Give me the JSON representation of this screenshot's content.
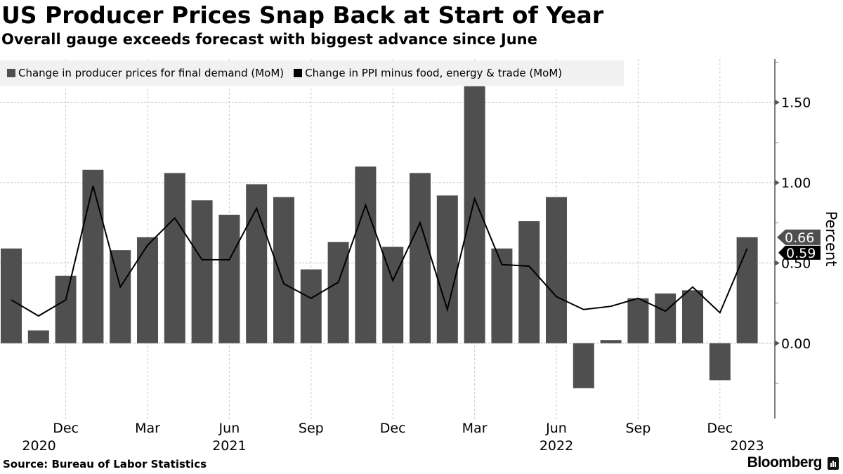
{
  "header": {
    "title": "US Producer Prices Snap Back at Start of Year",
    "subtitle": "Overall gauge exceeds forecast with biggest advance since June"
  },
  "legend": [
    {
      "label": "Change in producer prices for final demand (MoM)",
      "color": "#4f4f4f"
    },
    {
      "label": "Change in PPI minus food, energy & trade (MoM)",
      "color": "#000000"
    }
  ],
  "footer": {
    "source": "Source: Bureau of Labor Statistics",
    "brand": "Bloomberg"
  },
  "chart_data": {
    "type": "bar",
    "title": "US Producer Prices Snap Back at Start of Year",
    "subtitle": "Overall gauge exceeds forecast with biggest advance since June",
    "xlabel": "",
    "ylabel": "Percent",
    "ylim": [
      -0.46,
      1.77
    ],
    "grid": true,
    "legend_position": "top-left",
    "categories": [
      "Oct 2020",
      "Nov 2020",
      "Dec 2020",
      "Jan 2021",
      "Feb 2021",
      "Mar 2021",
      "Apr 2021",
      "May 2021",
      "Jun 2021",
      "Jul 2021",
      "Aug 2021",
      "Sep 2021",
      "Oct 2021",
      "Nov 2021",
      "Dec 2021",
      "Jan 2022",
      "Feb 2022",
      "Mar 2022",
      "Apr 2022",
      "May 2022",
      "Jun 2022",
      "Jul 2022",
      "Aug 2022",
      "Sep 2022",
      "Oct 2022",
      "Nov 2022",
      "Dec 2022",
      "Jan 2023"
    ],
    "series": [
      {
        "name": "Change in producer prices for final demand (MoM)",
        "type": "bar",
        "color": "#4f4f4f",
        "values": [
          0.59,
          0.08,
          0.42,
          1.08,
          0.58,
          0.66,
          1.06,
          0.89,
          0.8,
          0.99,
          0.91,
          0.46,
          0.63,
          1.1,
          0.6,
          1.06,
          0.92,
          1.6,
          0.59,
          0.76,
          0.91,
          -0.28,
          0.02,
          0.28,
          0.31,
          0.33,
          -0.23,
          0.66
        ],
        "last_value_label": "0.66"
      },
      {
        "name": "Change in PPI minus food, energy & trade (MoM)",
        "type": "line",
        "color": "#000000",
        "values": [
          0.27,
          0.17,
          0.27,
          0.98,
          0.35,
          0.61,
          0.78,
          0.52,
          0.52,
          0.84,
          0.37,
          0.28,
          0.38,
          0.86,
          0.39,
          0.75,
          0.21,
          0.9,
          0.49,
          0.48,
          0.29,
          0.21,
          0.23,
          0.28,
          0.2,
          0.35,
          0.19,
          0.59
        ],
        "last_value_label": "0.59"
      }
    ],
    "y_ticks": [
      {
        "value": 1.5,
        "label": "1.50"
      },
      {
        "value": 1.0,
        "label": "1.00"
      },
      {
        "value": 0.5,
        "label": "0.50"
      },
      {
        "value": 0.0,
        "label": "0.00"
      }
    ],
    "y_minor_ticks": [
      1.75,
      1.25,
      0.75,
      0.25,
      -0.25
    ],
    "x_ticks": [
      {
        "index": 2,
        "label": "Dec",
        "year": "2020"
      },
      {
        "index": 5,
        "label": "Mar",
        "year": ""
      },
      {
        "index": 8,
        "label": "Jun",
        "year": "2021"
      },
      {
        "index": 11,
        "label": "Sep",
        "year": ""
      },
      {
        "index": 14,
        "label": "Dec",
        "year": ""
      },
      {
        "index": 17,
        "label": "Mar",
        "year": ""
      },
      {
        "index": 20,
        "label": "Jun",
        "year": "2022"
      },
      {
        "index": 23,
        "label": "Sep",
        "year": ""
      },
      {
        "index": 26,
        "label": "Dec",
        "year": ""
      },
      {
        "index": 27,
        "label": "",
        "year": "2023"
      }
    ]
  }
}
